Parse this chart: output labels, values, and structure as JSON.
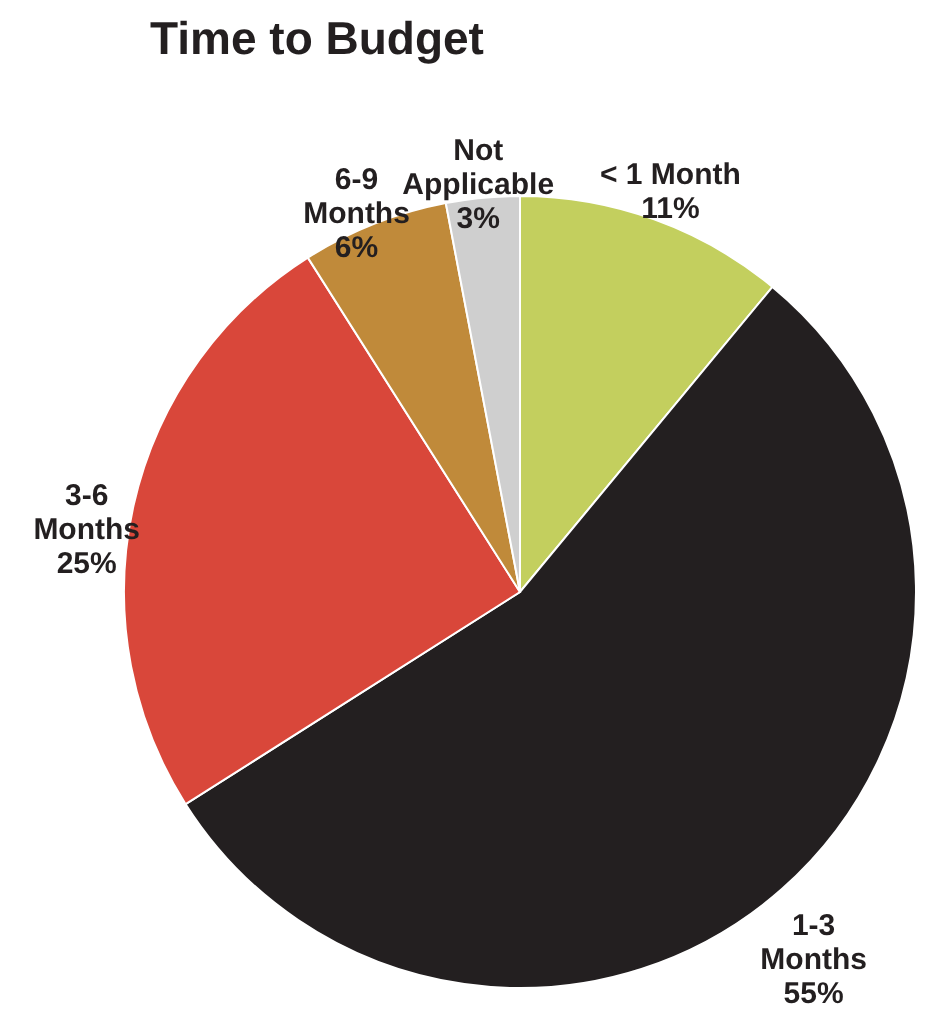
{
  "chart_data": {
    "type": "pie",
    "title": "Time to Budget",
    "categories": [
      "< 1 Month",
      "1-3 Months",
      "3-6 Months",
      "6-9 Months",
      "Not Applicable"
    ],
    "values": [
      11,
      55,
      25,
      6,
      3
    ],
    "value_labels": [
      "11%",
      "55%",
      "25%",
      "6%",
      "3%"
    ],
    "colors": [
      "#c3cf5e",
      "#231f20",
      "#d9473a",
      "#c08a3a",
      "#cfcfcf"
    ],
    "legend": false
  }
}
